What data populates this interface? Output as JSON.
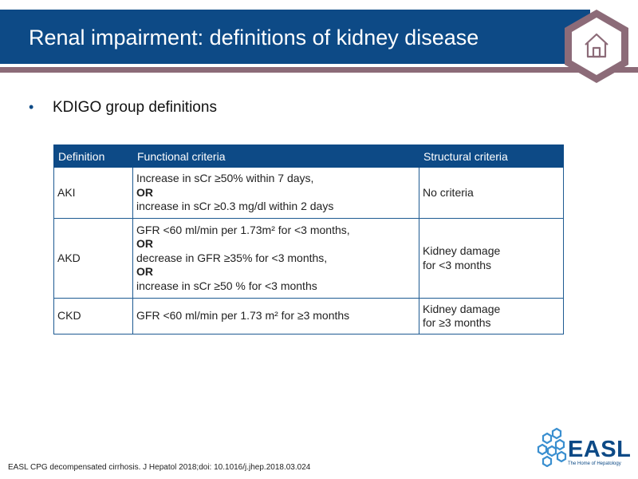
{
  "header": {
    "title": "Renal impairment: definitions of kidney disease",
    "home_icon": "home-icon"
  },
  "colors": {
    "header_blue": "#0d4a86",
    "stripe_mauve": "#8c6b78",
    "hex_badge": "#8c6b78"
  },
  "bullet": "KDIGO group definitions",
  "table": {
    "headers": [
      "Definition",
      "Functional criteria",
      "Structural criteria"
    ],
    "rows": [
      {
        "definition": "AKI",
        "functional": [
          "Increase in sCr ≥50% within 7 days,",
          "OR",
          "increase in sCr ≥0.3 mg/dl within 2 days"
        ],
        "structural": [
          "No criteria"
        ]
      },
      {
        "definition": "AKD",
        "functional": [
          "GFR <60 ml/min per 1.73m² for <3 months,",
          "OR",
          "decrease in GFR ≥35% for <3 months,",
          "OR",
          "increase in sCr ≥50 % for <3 months"
        ],
        "structural": [
          "Kidney damage",
          "for <3 months"
        ]
      },
      {
        "definition": "CKD",
        "functional": [
          "GFR <60 ml/min per 1.73 m² for ≥3 months"
        ],
        "structural": [
          "Kidney damage",
          "for ≥3 months"
        ]
      }
    ]
  },
  "footer": {
    "reference": "EASL CPG decompensated cirrhosis. J Hepatol 2018;doi: 10.1016/j.jhep.2018.03.024"
  },
  "logo": {
    "name": "EASL",
    "tagline": "The Home of Hepatology",
    "icon": "easl-logo-icon"
  }
}
